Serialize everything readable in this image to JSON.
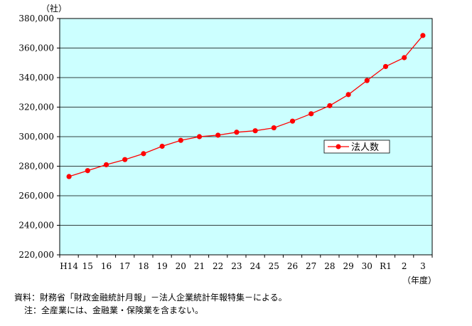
{
  "chart_data": {
    "type": "line",
    "y_unit": "（社）",
    "x_unit": "（年度）",
    "categories": [
      "H14",
      "15",
      "16",
      "17",
      "18",
      "19",
      "20",
      "21",
      "22",
      "23",
      "24",
      "25",
      "26",
      "27",
      "28",
      "29",
      "30",
      "R1",
      "2",
      "3"
    ],
    "series": [
      {
        "name": "法人数",
        "color": "#ff0000",
        "values": [
          273000,
          277000,
          281000,
          284500,
          288500,
          293500,
          297500,
          300000,
          301000,
          303000,
          304000,
          306000,
          310500,
          315500,
          321000,
          328500,
          338000,
          347500,
          353500,
          368500
        ]
      }
    ],
    "ylim": [
      220000,
      380000
    ],
    "yticks": [
      220000,
      240000,
      260000,
      280000,
      300000,
      320000,
      340000,
      360000,
      380000
    ],
    "ytick_labels": [
      "220,000",
      "240,000",
      "260,000",
      "280,000",
      "300,000",
      "320,000",
      "340,000",
      "360,000",
      "380,000"
    ],
    "grid": true,
    "legend_position": "right-middle",
    "plot_background": "#ccffff"
  },
  "notes": {
    "source": "資料：財務省「財政金融統計月報」－法人企業統計年報特集－による。",
    "note": "注：全産業には、金融業・保険業を含まない。"
  }
}
